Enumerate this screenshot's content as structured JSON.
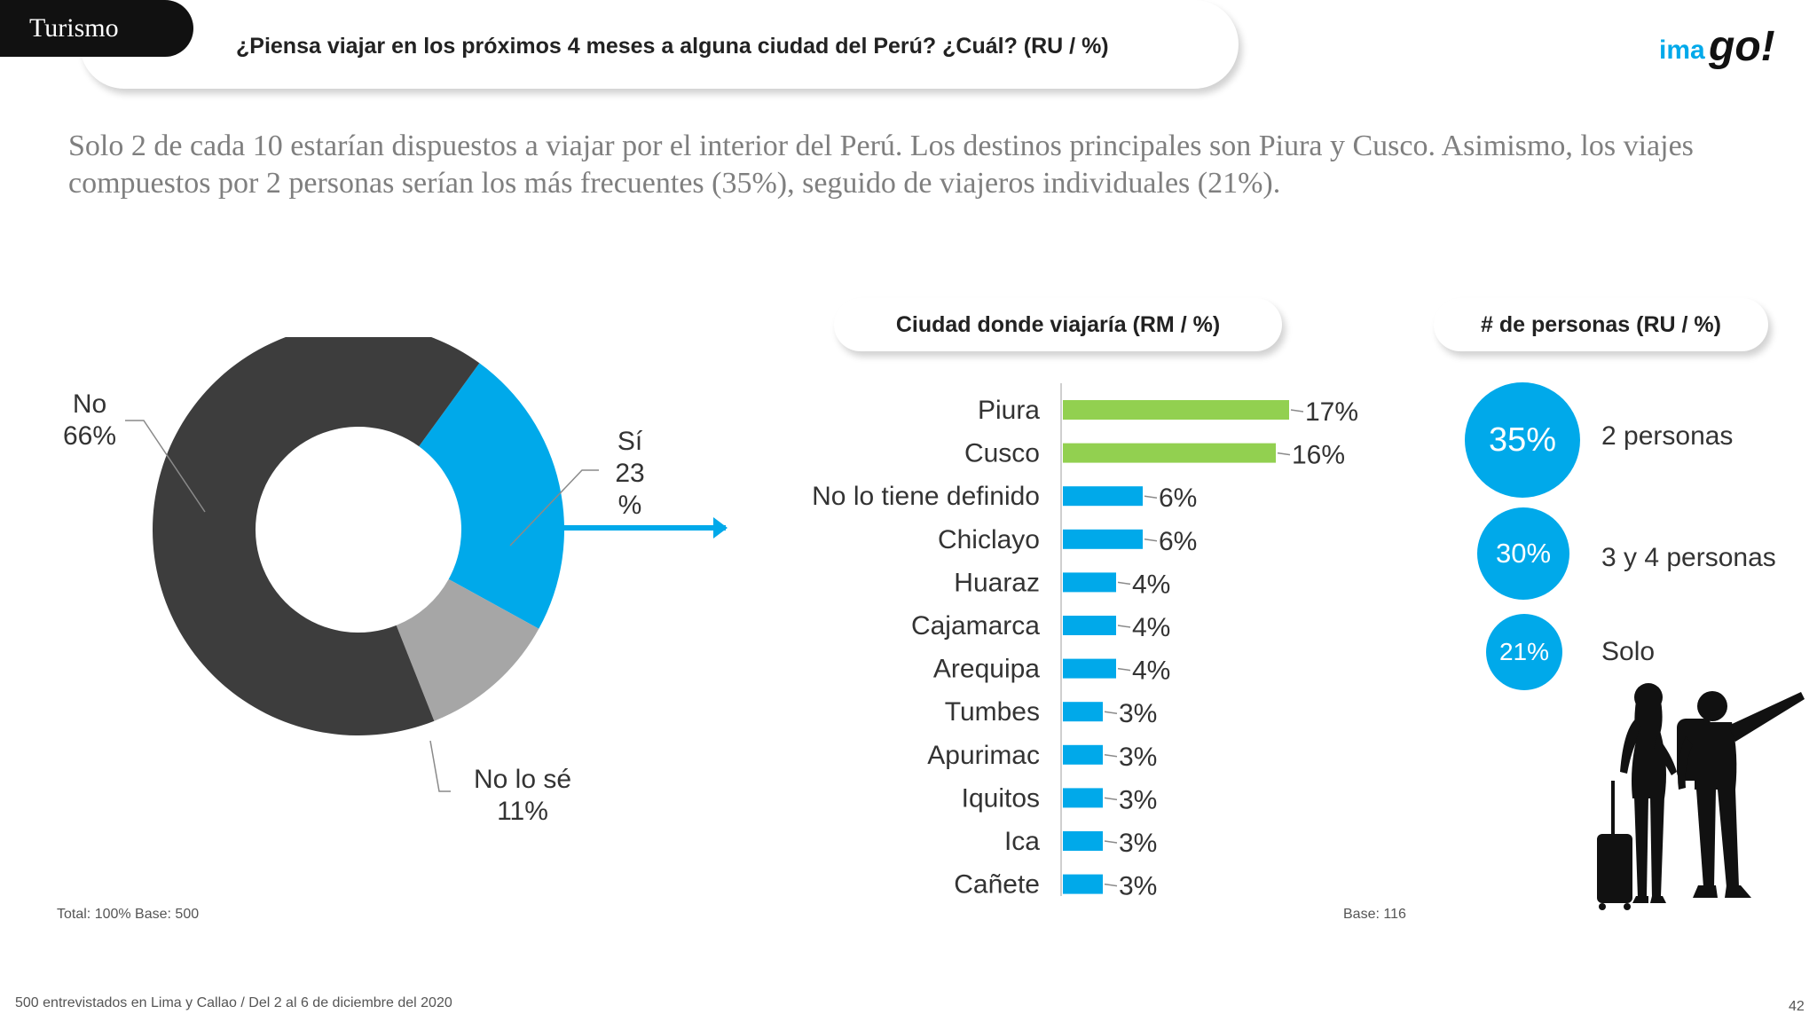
{
  "header": {
    "section": "Turismo",
    "question": "¿Piensa viajar en los próximos 4 meses a alguna ciudad del Perú? ¿Cuál?  (RU  /  %)",
    "logo_text_blue": "ima",
    "logo_text_dark": "go!"
  },
  "summary": "Solo 2 de cada 10 estarían dispuestos a viajar por el interior del Perú. Los destinos principales son Piura y Cusco. Asimismo, los viajes compuestos por 2 personas serían los más frecuentes (35%), seguido de viajeros individuales (21%).",
  "colors": {
    "dark": "#3d3d3d",
    "blue": "#00a9ea",
    "gray": "#a6a6a6",
    "green": "#92d050"
  },
  "chart_data": [
    {
      "type": "pie",
      "donut": true,
      "slices": [
        {
          "name": "Sí",
          "value": 23,
          "label": "23 %",
          "color": "#00a9ea"
        },
        {
          "name": "No lo sé",
          "value": 11,
          "label": "11%",
          "color": "#a6a6a6"
        },
        {
          "name": "No",
          "value": 66,
          "label": "66%",
          "color": "#3d3d3d"
        }
      ],
      "note": "Total: 100%   Base: 500"
    },
    {
      "type": "bar",
      "orientation": "horizontal",
      "title": "Ciudad donde viajaría  (RM  /  %)",
      "categories": [
        "Piura",
        "Cusco",
        "No lo tiene definido",
        "Chiclayo",
        "Huaraz",
        "Cajamarca",
        "Arequipa",
        "Tumbes",
        "Apurimac",
        "Iquitos",
        "Ica",
        "Cañete"
      ],
      "values": [
        17,
        16,
        6,
        6,
        4,
        4,
        4,
        3,
        3,
        3,
        3,
        3
      ],
      "labels": [
        "17%",
        "16%",
        "6%",
        "6%",
        "4%",
        "4%",
        "4%",
        "3%",
        "3%",
        "3%",
        "3%",
        "3%"
      ],
      "highlight_count": 2,
      "note": "Base: 116"
    },
    {
      "type": "table",
      "title": "# de personas (RU  /  %)",
      "rows": [
        {
          "value": "35%",
          "label": "2 personas"
        },
        {
          "value": "30%",
          "label": "3 y 4 personas"
        },
        {
          "value": "21%",
          "label": "Solo"
        }
      ]
    }
  ],
  "footer": {
    "text": "500 entrevistados en Lima y Callao   /   Del 2 al 6 de diciembre del 2020",
    "page": "42"
  }
}
